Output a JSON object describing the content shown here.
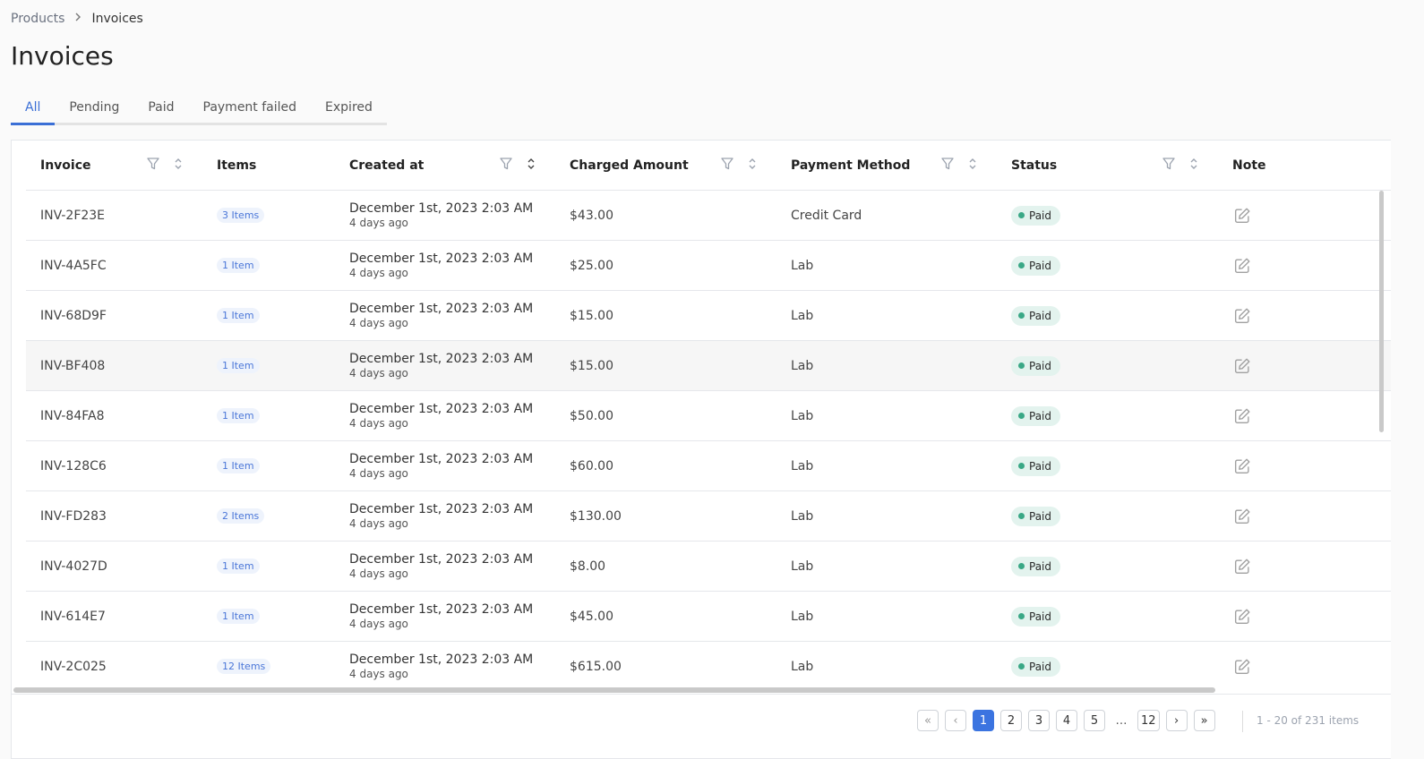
{
  "breadcrumb": {
    "parent": "Products",
    "current": "Invoices"
  },
  "page_title": "Invoices",
  "tabs": [
    "All",
    "Pending",
    "Paid",
    "Payment failed",
    "Expired"
  ],
  "active_tab": "All",
  "columns": {
    "invoice": "Invoice",
    "items": "Items",
    "created": "Created at",
    "amount": "Charged Amount",
    "method": "Payment Method",
    "status": "Status",
    "note": "Note"
  },
  "icons": {
    "filter": "filter-icon",
    "sort": "sort-icon",
    "edit": "edit-note-icon",
    "chevron": "chevron-right-icon"
  },
  "rows": [
    {
      "invoice": "INV-2F23E",
      "items": "3 Items",
      "created": "December 1st, 2023 2:03 AM",
      "ago": "4 days ago",
      "amount": "$43.00",
      "method": "Credit Card",
      "status": "Paid"
    },
    {
      "invoice": "INV-4A5FC",
      "items": "1 Item",
      "created": "December 1st, 2023 2:03 AM",
      "ago": "4 days ago",
      "amount": "$25.00",
      "method": "Lab",
      "status": "Paid"
    },
    {
      "invoice": "INV-68D9F",
      "items": "1 Item",
      "created": "December 1st, 2023 2:03 AM",
      "ago": "4 days ago",
      "amount": "$15.00",
      "method": "Lab",
      "status": "Paid"
    },
    {
      "invoice": "INV-BF408",
      "items": "1 Item",
      "created": "December 1st, 2023 2:03 AM",
      "ago": "4 days ago",
      "amount": "$15.00",
      "method": "Lab",
      "status": "Paid"
    },
    {
      "invoice": "INV-84FA8",
      "items": "1 Item",
      "created": "December 1st, 2023 2:03 AM",
      "ago": "4 days ago",
      "amount": "$50.00",
      "method": "Lab",
      "status": "Paid"
    },
    {
      "invoice": "INV-128C6",
      "items": "1 Item",
      "created": "December 1st, 2023 2:03 AM",
      "ago": "4 days ago",
      "amount": "$60.00",
      "method": "Lab",
      "status": "Paid"
    },
    {
      "invoice": "INV-FD283",
      "items": "2 Items",
      "created": "December 1st, 2023 2:03 AM",
      "ago": "4 days ago",
      "amount": "$130.00",
      "method": "Lab",
      "status": "Paid"
    },
    {
      "invoice": "INV-4027D",
      "items": "1 Item",
      "created": "December 1st, 2023 2:03 AM",
      "ago": "4 days ago",
      "amount": "$8.00",
      "method": "Lab",
      "status": "Paid"
    },
    {
      "invoice": "INV-614E7",
      "items": "1 Item",
      "created": "December 1st, 2023 2:03 AM",
      "ago": "4 days ago",
      "amount": "$45.00",
      "method": "Lab",
      "status": "Paid"
    },
    {
      "invoice": "INV-2C025",
      "items": "12 Items",
      "created": "December 1st, 2023 2:03 AM",
      "ago": "4 days ago",
      "amount": "$615.00",
      "method": "Lab",
      "status": "Paid"
    }
  ],
  "colors": {
    "accent": "#3b74e0",
    "paid_dot": "#3aa886",
    "paid_bg": "#e3f3ee",
    "items_badge": "#4a76d8"
  },
  "pagination": {
    "first": "«",
    "prev": "‹",
    "pages": [
      "1",
      "2",
      "3",
      "4",
      "5"
    ],
    "current": "1",
    "ellipsis": "…",
    "last_page": "12",
    "next": "›",
    "last": "»",
    "range_text": "1 - 20 of 231 items"
  }
}
